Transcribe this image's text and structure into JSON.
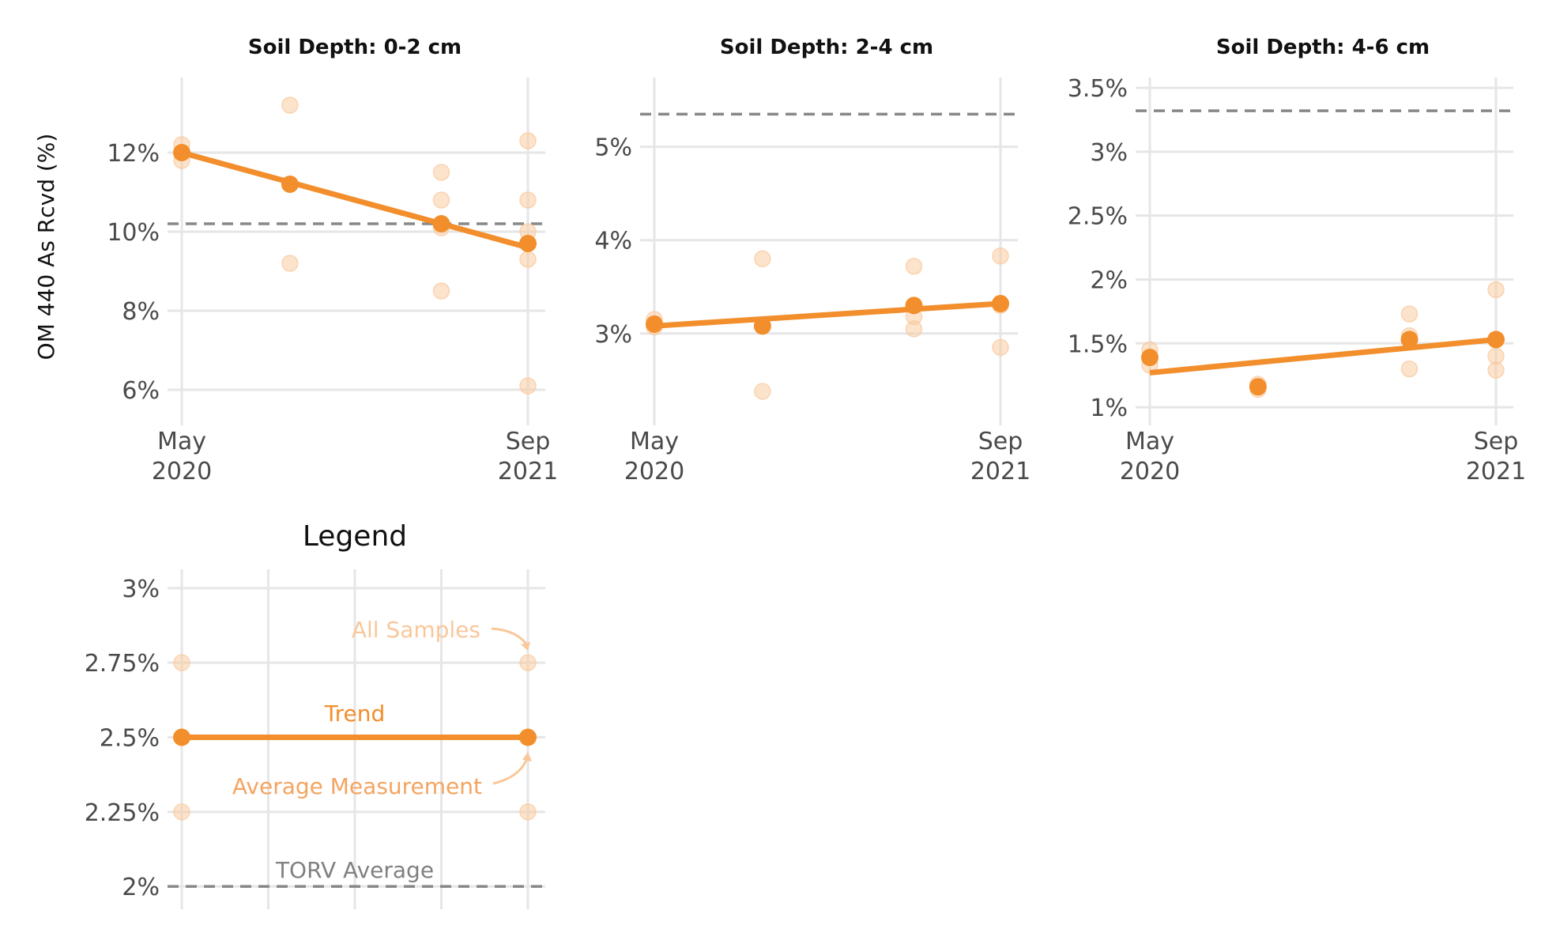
{
  "figure": {
    "ylabel": "OM 440 As Rcvd (%)",
    "line_color": "#F28E2B",
    "sample_color": "#F9C79A",
    "avg_line_color": "#888888",
    "grid_color": "#E6E6E6"
  },
  "chart_data": [
    {
      "type": "line",
      "title": "Soil Depth: 0-2 cm",
      "x_ticks": [
        "May\n2020",
        "Sep\n2021"
      ],
      "x_domain": [
        "2020-05",
        "2021-09"
      ],
      "y_ticks": [
        {
          "value": 6,
          "label": "6%"
        },
        {
          "value": 8,
          "label": "8%"
        },
        {
          "value": 10,
          "label": "10%"
        },
        {
          "value": 12,
          "label": "12%"
        }
      ],
      "ylim": [
        5.3,
        13.8
      ],
      "torv_average": 10.2,
      "trend": [
        {
          "x": "2020-05",
          "y": 12.0
        },
        {
          "x": "2021-09",
          "y": 9.6
        }
      ],
      "averages": [
        {
          "x": "2020-05",
          "y": 12.0
        },
        {
          "x": "2020-10",
          "y": 11.2
        },
        {
          "x": "2021-05",
          "y": 10.2
        },
        {
          "x": "2021-09",
          "y": 9.7
        }
      ],
      "samples": [
        {
          "x": "2020-05",
          "y": 12.2
        },
        {
          "x": "2020-05",
          "y": 11.8
        },
        {
          "x": "2020-10",
          "y": 13.2
        },
        {
          "x": "2020-10",
          "y": 9.2
        },
        {
          "x": "2021-05",
          "y": 11.5
        },
        {
          "x": "2021-05",
          "y": 10.8
        },
        {
          "x": "2021-05",
          "y": 10.1
        },
        {
          "x": "2021-05",
          "y": 8.5
        },
        {
          "x": "2021-09",
          "y": 12.3
        },
        {
          "x": "2021-09",
          "y": 10.8
        },
        {
          "x": "2021-09",
          "y": 10.0
        },
        {
          "x": "2021-09",
          "y": 9.3
        },
        {
          "x": "2021-09",
          "y": 6.1
        }
      ]
    },
    {
      "type": "line",
      "title": "Soil Depth: 2-4 cm",
      "x_ticks": [
        "May\n2020",
        "Sep\n2021"
      ],
      "x_domain": [
        "2020-05",
        "2021-09"
      ],
      "y_ticks": [
        {
          "value": 3,
          "label": "3%"
        },
        {
          "value": 4,
          "label": "4%"
        },
        {
          "value": 5,
          "label": "5%"
        }
      ],
      "ylim": [
        2.1,
        5.7
      ],
      "torv_average": 5.35,
      "trend": [
        {
          "x": "2020-05",
          "y": 3.08
        },
        {
          "x": "2021-09",
          "y": 3.32
        }
      ],
      "averages": [
        {
          "x": "2020-05",
          "y": 3.1
        },
        {
          "x": "2020-10",
          "y": 3.08
        },
        {
          "x": "2021-05",
          "y": 3.3
        },
        {
          "x": "2021-09",
          "y": 3.32
        }
      ],
      "samples": [
        {
          "x": "2020-05",
          "y": 3.15
        },
        {
          "x": "2020-05",
          "y": 3.07
        },
        {
          "x": "2020-10",
          "y": 3.8
        },
        {
          "x": "2020-10",
          "y": 2.38
        },
        {
          "x": "2021-05",
          "y": 3.72
        },
        {
          "x": "2021-05",
          "y": 3.18
        },
        {
          "x": "2021-05",
          "y": 3.05
        },
        {
          "x": "2021-09",
          "y": 3.83
        },
        {
          "x": "2021-09",
          "y": 3.3
        },
        {
          "x": "2021-09",
          "y": 2.85
        }
      ]
    },
    {
      "type": "line",
      "title": "Soil Depth: 4-6 cm",
      "x_ticks": [
        "May\n2020",
        "Sep\n2021"
      ],
      "x_domain": [
        "2020-05",
        "2021-09"
      ],
      "y_ticks": [
        {
          "value": 1.0,
          "label": "1%"
        },
        {
          "value": 1.5,
          "label": "1.5%"
        },
        {
          "value": 2.0,
          "label": "2%"
        },
        {
          "value": 2.5,
          "label": "2.5%"
        },
        {
          "value": 3.0,
          "label": "3%"
        },
        {
          "value": 3.5,
          "label": "3.5%"
        }
      ],
      "ylim": [
        0.92,
        3.55
      ],
      "torv_average": 3.32,
      "trend": [
        {
          "x": "2020-05",
          "y": 1.27
        },
        {
          "x": "2021-09",
          "y": 1.53
        }
      ],
      "averages": [
        {
          "x": "2020-05",
          "y": 1.39
        },
        {
          "x": "2020-10",
          "y": 1.16
        },
        {
          "x": "2021-05",
          "y": 1.53
        },
        {
          "x": "2021-09",
          "y": 1.53
        }
      ],
      "samples": [
        {
          "x": "2020-05",
          "y": 1.45
        },
        {
          "x": "2020-05",
          "y": 1.33
        },
        {
          "x": "2020-10",
          "y": 1.18
        },
        {
          "x": "2020-10",
          "y": 1.14
        },
        {
          "x": "2021-05",
          "y": 1.73
        },
        {
          "x": "2021-05",
          "y": 1.56
        },
        {
          "x": "2021-05",
          "y": 1.3
        },
        {
          "x": "2021-09",
          "y": 1.92
        },
        {
          "x": "2021-09",
          "y": 1.4
        },
        {
          "x": "2021-09",
          "y": 1.29
        }
      ]
    },
    {
      "type": "line",
      "title": "Legend",
      "x_ticks": [],
      "x_domain": [
        0,
        1
      ],
      "x_gridlines": [
        0,
        0.25,
        0.5,
        0.75,
        1
      ],
      "y_ticks": [
        {
          "value": 2.0,
          "label": "2%"
        },
        {
          "value": 2.25,
          "label": "2.25%"
        },
        {
          "value": 2.5,
          "label": "2.5%"
        },
        {
          "value": 2.75,
          "label": "2.75%"
        },
        {
          "value": 3.0,
          "label": "3%"
        }
      ],
      "ylim": [
        1.95,
        3.05
      ],
      "torv_average": 2.0,
      "trend": [
        {
          "x": 0,
          "y": 2.5
        },
        {
          "x": 1,
          "y": 2.5
        }
      ],
      "averages": [
        {
          "x": 0,
          "y": 2.5
        },
        {
          "x": 1,
          "y": 2.5
        }
      ],
      "samples": [
        {
          "x": 0,
          "y": 2.75
        },
        {
          "x": 0,
          "y": 2.25
        },
        {
          "x": 1,
          "y": 2.75
        },
        {
          "x": 1,
          "y": 2.25
        }
      ],
      "annotations": {
        "all_samples": "All Samples",
        "trend": "Trend",
        "average_measurement": "Average Measurement",
        "torv_average": "TORV Average"
      }
    }
  ]
}
